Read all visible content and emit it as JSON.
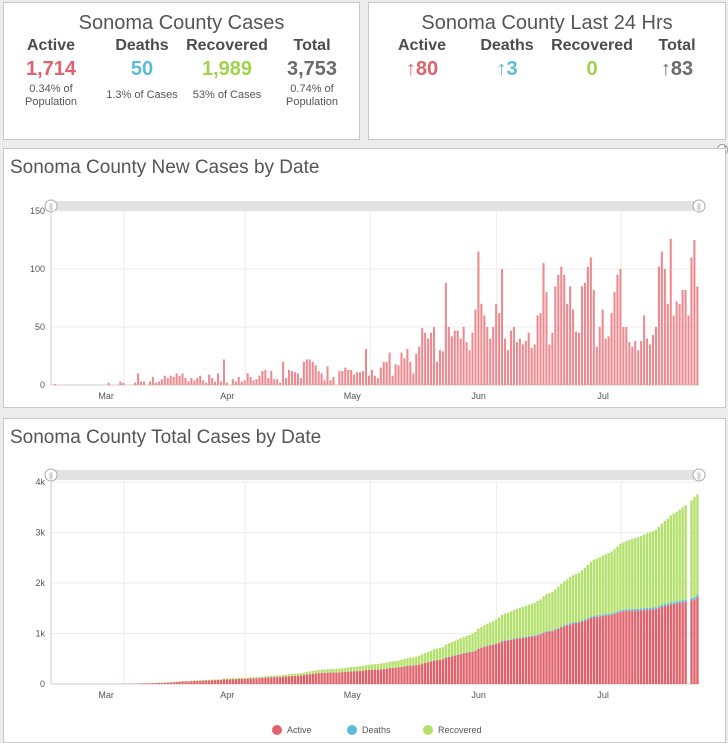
{
  "summary": {
    "title": "Sonoma County Cases",
    "stats": [
      {
        "label": "Active",
        "value": "1,714",
        "sub1": "0.34% of",
        "sub2": "Population",
        "color": "#e0636b"
      },
      {
        "label": "Deaths",
        "value": "50",
        "sub1": "1.3% of Cases",
        "sub2": "",
        "color": "#5bbcd9"
      },
      {
        "label": "Recovered",
        "value": "1,989",
        "sub1": "53% of Cases",
        "sub2": "",
        "color": "#9fd44a"
      },
      {
        "label": "Total",
        "value": "3,753",
        "sub1": "0.74% of",
        "sub2": "Population",
        "color": "#6b6b6b"
      }
    ]
  },
  "last24": {
    "title": "Sonoma County Last 24 Hrs",
    "stats": [
      {
        "label": "Active",
        "value": "80",
        "arrow": "↑",
        "color": "#e0636b"
      },
      {
        "label": "Deaths",
        "value": "3",
        "arrow": "↑",
        "color": "#5bbcd9"
      },
      {
        "label": "Recovered",
        "value": "0",
        "arrow": "",
        "color": "#9fd44a"
      },
      {
        "label": "Total",
        "value": "83",
        "arrow": "↑",
        "color": "#6b6b6b"
      }
    ]
  },
  "chart_data": [
    {
      "type": "bar",
      "title": "Sonoma County New Cases by Date",
      "x_labels": [
        "Mar",
        "Apr",
        "May",
        "Jun",
        "Jul"
      ],
      "y_ticks": [
        "150",
        "100",
        "50",
        "0"
      ],
      "ylim": [
        0,
        150
      ],
      "grid": true,
      "color": "#ec8a90",
      "series": [
        {
          "values": [
            0,
            1,
            0,
            0,
            0,
            0,
            0,
            0,
            0,
            0,
            0,
            0,
            0,
            0,
            0,
            0,
            0,
            0,
            0,
            2,
            0,
            0,
            0,
            3,
            2,
            0,
            0,
            0,
            2,
            10,
            3,
            3,
            0,
            3,
            7,
            2,
            3,
            5,
            8,
            6,
            8,
            7,
            10,
            8,
            10,
            6,
            3,
            6,
            4,
            6,
            8,
            4,
            2,
            9,
            6,
            3,
            10,
            3,
            22,
            2,
            0,
            5,
            3,
            7,
            3,
            4,
            10,
            7,
            4,
            5,
            8,
            12,
            13,
            6,
            12,
            5,
            5,
            2,
            20,
            6,
            13,
            12,
            11,
            10,
            6,
            20,
            22,
            22,
            20,
            17,
            12,
            10,
            4,
            16,
            4,
            7,
            0,
            12,
            12,
            15,
            13,
            13,
            9,
            11,
            11,
            12,
            31,
            8,
            13,
            8,
            6,
            15,
            20,
            20,
            28,
            8,
            18,
            17,
            28,
            23,
            31,
            20,
            10,
            27,
            33,
            49,
            45,
            40,
            45,
            50,
            20,
            30,
            29,
            88,
            50,
            42,
            47,
            47,
            40,
            50,
            37,
            30,
            45,
            65,
            115,
            70,
            60,
            50,
            40,
            50,
            70,
            62,
            100,
            40,
            30,
            47,
            50,
            37,
            40,
            35,
            38,
            45,
            32,
            35,
            60,
            62,
            105,
            80,
            35,
            45,
            85,
            95,
            102,
            95,
            70,
            85,
            65,
            46,
            45,
            85,
            88,
            102,
            110,
            82,
            33,
            50,
            65,
            40,
            42,
            62,
            80,
            95,
            100,
            50,
            50,
            37,
            33,
            38,
            30,
            38,
            60,
            40,
            35,
            43,
            50,
            102,
            115,
            100,
            70,
            126,
            60,
            72,
            70,
            82,
            82,
            60,
            110,
            125,
            85
          ],
          "start": 0
        }
      ]
    },
    {
      "type": "bar",
      "title": "Sonoma County Total Cases by Date",
      "x_labels": [
        "Mar",
        "Apr",
        "May",
        "Jun",
        "Jul"
      ],
      "y_ticks": [
        "4k",
        "3k",
        "2k",
        "1k",
        "0"
      ],
      "ylim": [
        0,
        4000
      ],
      "grid": true,
      "stacked": true,
      "legend": "bottom",
      "total_end": 3753,
      "series": [
        {
          "name": "Active",
          "color": "#e0636b",
          "end": 1714
        },
        {
          "name": "Deaths",
          "color": "#5bbcd9",
          "end": 50
        },
        {
          "name": "Recovered",
          "color": "#b3e06a",
          "end": 1989
        }
      ]
    }
  ]
}
